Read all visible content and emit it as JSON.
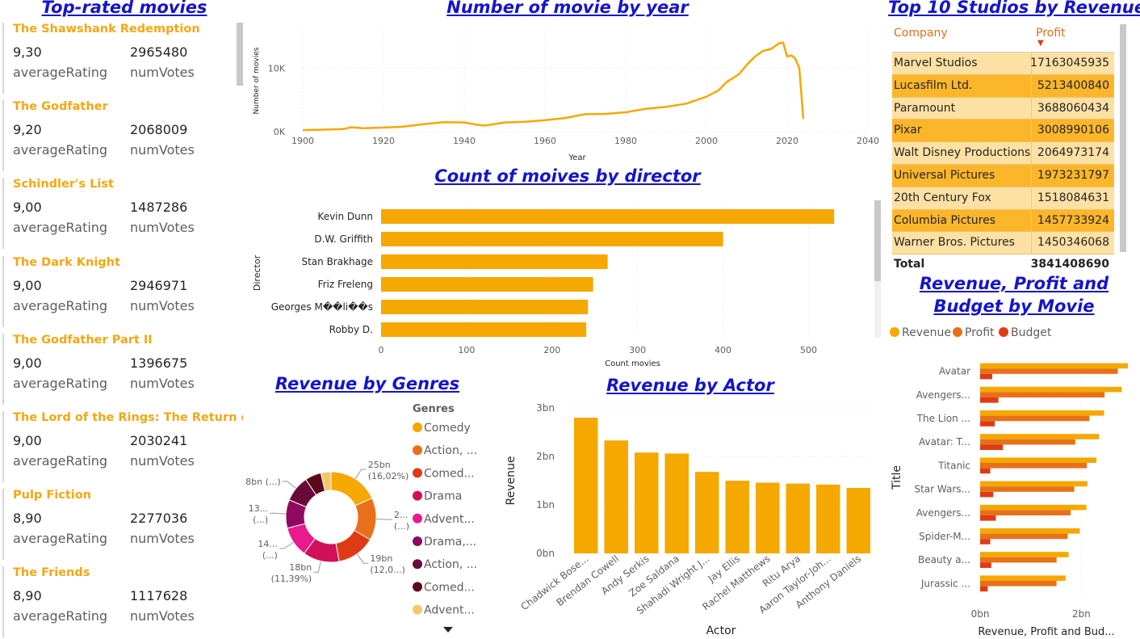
{
  "left_panel": {
    "title": "Top-rated movies",
    "cards": [
      {
        "title": "The Shawshank Redemption",
        "rating": "9,30",
        "votes": "2965480"
      },
      {
        "title": "The Godfather",
        "rating": "9,20",
        "votes": "2068009"
      },
      {
        "title": "Schindler's List",
        "rating": "9,00",
        "votes": "1487286"
      },
      {
        "title": "The Dark Knight",
        "rating": "9,00",
        "votes": "2946971"
      },
      {
        "title": "The Godfather Part II",
        "rating": "9,00",
        "votes": "1396675"
      },
      {
        "title": "The Lord of the Rings: The Return of t...",
        "rating": "9,00",
        "votes": "2030241"
      },
      {
        "title": "Pulp Fiction",
        "rating": "8,90",
        "votes": "2277036"
      },
      {
        "title": "The Friends",
        "rating": "8,90",
        "votes": "1117628"
      }
    ],
    "rating_label": "averageRating",
    "votes_label": "numVotes"
  },
  "studios": {
    "title": "Top 10 Studios by Revenue",
    "col_company": "Company",
    "col_profit": "Profit",
    "rows": [
      {
        "company": "Marvel Studios",
        "profit": "17163045935"
      },
      {
        "company": "Lucasfilm Ltd.",
        "profit": "5213400840"
      },
      {
        "company": "Paramount",
        "profit": "3688060434"
      },
      {
        "company": "Pixar",
        "profit": "3008990106"
      },
      {
        "company": "Walt Disney Productions",
        "profit": "2064973174"
      },
      {
        "company": "Universal Pictures",
        "profit": "1973231797"
      },
      {
        "company": "20th Century Fox",
        "profit": "1518084631"
      },
      {
        "company": "Columbia Pictures",
        "profit": "1457733924"
      },
      {
        "company": "Warner Bros. Pictures",
        "profit": "1450346068"
      }
    ],
    "total_label": "Total",
    "total_value": "3841408690",
    "row_colors": [
      "#fde0a3",
      "#fbb62c"
    ]
  },
  "colors": {
    "accent": "#f5a800",
    "title_blue": "#1515c8",
    "card_title": "#f3a712",
    "revenue": "#f5a800",
    "profit": "#e8701a",
    "budget": "#e03a14"
  },
  "chart_data": [
    {
      "id": "by_year",
      "type": "line",
      "title": "Number of movie by year",
      "xlabel": "Year",
      "ylabel": "Number of movies",
      "xlim": [
        1900,
        2040
      ],
      "ylim": [
        0,
        16000
      ],
      "xticks": [
        "1900",
        "1920",
        "1940",
        "1960",
        "1980",
        "2000",
        "2020",
        "2040"
      ],
      "yticks": [
        "0K",
        "10K"
      ],
      "x": [
        1900,
        1905,
        1910,
        1912,
        1915,
        1920,
        1925,
        1930,
        1935,
        1940,
        1943,
        1945,
        1950,
        1955,
        1960,
        1965,
        1970,
        1975,
        1980,
        1985,
        1990,
        1995,
        2000,
        2003,
        2005,
        2008,
        2010,
        2012,
        2014,
        2016,
        2018,
        2019,
        2020,
        2021,
        2022,
        2023,
        2024
      ],
      "y": [
        250,
        320,
        400,
        700,
        550,
        650,
        800,
        1200,
        1500,
        1450,
        1100,
        950,
        1450,
        1550,
        1800,
        2150,
        2750,
        2800,
        3050,
        3600,
        3900,
        4400,
        5500,
        6500,
        7800,
        9000,
        10500,
        11800,
        12700,
        13000,
        13900,
        14000,
        11800,
        12000,
        11500,
        10000,
        2000
      ],
      "grid": true
    },
    {
      "id": "by_director",
      "type": "bar",
      "orientation": "horizontal",
      "title": "Count of moives by director",
      "xlabel": "Count movies",
      "ylabel": "Director",
      "categories": [
        "Kevin Dunn",
        "D.W. Griffith",
        "Stan Brakhage",
        "Friz Freleng",
        "Georges M��li��s",
        "Robby D."
      ],
      "values": [
        530,
        400,
        265,
        248,
        242,
        240
      ],
      "xlim": [
        0,
        560
      ],
      "xticks": [
        "0",
        "100",
        "200",
        "300",
        "400",
        "500"
      ],
      "grid": true
    },
    {
      "id": "by_genre",
      "type": "pie",
      "title": "Revenue by Genres",
      "legend_title": "Genres",
      "legend": [
        "Comedy",
        "Action, ...",
        "Comed...",
        "Drama",
        "Advent...",
        "Drama,...",
        "Action, ...",
        "Comed...",
        "Advent..."
      ],
      "values": [
        25,
        21,
        19,
        18,
        15,
        14,
        13,
        8,
        5
      ],
      "colors": [
        "#f5a800",
        "#e8701a",
        "#e03a14",
        "#d1105a",
        "#e81a8c",
        "#8e0a60",
        "#6a0a3a",
        "#5c0a1a",
        "#f5c66b"
      ],
      "slice_labels": [
        {
          "text": "25bn",
          "sub": "(16,02%)"
        },
        {
          "text": "2...",
          "sub": "(...)"
        },
        {
          "text": "19bn",
          "sub": "(12,0...)"
        },
        {
          "text": "18bn",
          "sub": "(11,39%)"
        },
        {
          "text": "14...",
          "sub": "(...)"
        },
        {
          "text": "13...",
          "sub": "(...)"
        },
        {
          "text": "8bn (...)",
          "sub": ""
        }
      ]
    },
    {
      "id": "by_actor",
      "type": "bar",
      "title": "Revenue by Actor",
      "xlabel": "Actor",
      "ylabel": "Revenue",
      "categories": [
        "Chadwick Bose...",
        "Brendan Cowell",
        "Andy Serkis",
        "Zoe Saldana",
        "Shahadi Wright J...",
        "Jay Ellis",
        "Rachel Matthews",
        "Ritu Arya",
        "Aaron Taylor-Joh...",
        "Anthony Daniels"
      ],
      "values": [
        2.8,
        2.33,
        2.08,
        2.06,
        1.68,
        1.5,
        1.46,
        1.44,
        1.42,
        1.35
      ],
      "ylim": [
        0,
        3
      ],
      "yticks": [
        "0bn",
        "1bn",
        "2bn",
        "3bn"
      ],
      "unit": "bn"
    },
    {
      "id": "by_movie",
      "type": "bar",
      "orientation": "horizontal",
      "title": "Revenue, Profit and Budget by Movie",
      "xlabel": "Revenue, Profit and Bud...",
      "ylabel": "Title",
      "legend_position": "top",
      "categories": [
        "Avatar",
        "Avengers...",
        "The Lion ...",
        "Avatar: T...",
        "Titanic",
        "Star Wars...",
        "Avengers...",
        "Spider-M...",
        "Beauty a...",
        "Jurassic ..."
      ],
      "series": [
        {
          "name": "Revenue",
          "values": [
            2.92,
            2.8,
            2.45,
            2.35,
            2.3,
            2.12,
            2.1,
            1.97,
            1.75,
            1.69
          ]
        },
        {
          "name": "Profit",
          "values": [
            2.72,
            2.46,
            2.16,
            1.88,
            2.11,
            1.86,
            1.79,
            1.73,
            1.51,
            1.51
          ]
        },
        {
          "name": "Budget",
          "values": [
            0.24,
            0.36,
            0.29,
            0.45,
            0.2,
            0.26,
            0.31,
            0.2,
            0.22,
            0.15
          ]
        }
      ],
      "xlim": [
        0,
        3
      ],
      "xticks": [
        "0bn",
        "2bn"
      ]
    }
  ]
}
